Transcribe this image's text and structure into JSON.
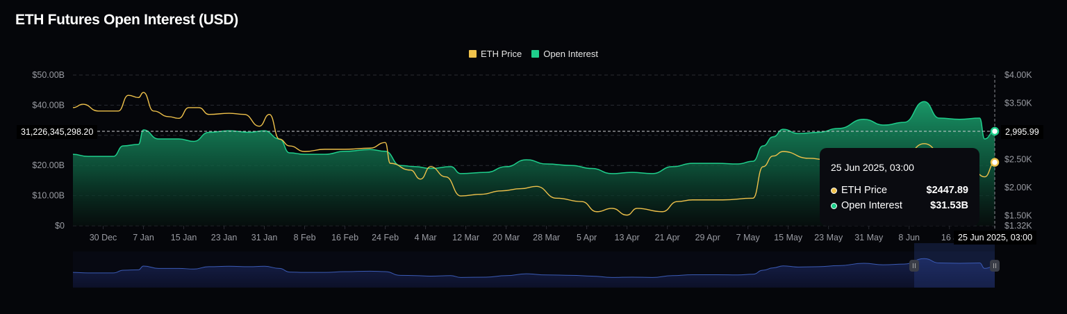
{
  "title": "ETH Futures Open Interest (USD)",
  "colors": {
    "eth_price": "#f0c24b",
    "open_interest": "#1fcf8c",
    "navigator_line": "#3b5bb5",
    "background": "#05060a"
  },
  "legend": [
    {
      "label": "ETH Price",
      "color": "#f0c24b"
    },
    {
      "label": "Open Interest",
      "color": "#1fcf8c"
    }
  ],
  "crosshair": {
    "left_value": "31,226,345,298.20",
    "right_value": "2,995.99",
    "bottom_value": "25 Jun 2025, 03:00"
  },
  "tooltip": {
    "date": "25 Jun 2025, 03:00",
    "rows": [
      {
        "label": "ETH Price",
        "value": "$2447.89",
        "color": "#f0c24b"
      },
      {
        "label": "Open Interest",
        "value": "$31.53B",
        "color": "#1fcf8c"
      }
    ]
  },
  "chart_data": {
    "type": "line",
    "title": "ETH Futures Open Interest (USD)",
    "x_range": [
      "2024-12-24",
      "2025-06-25"
    ],
    "x_ticks": [
      {
        "date": "2024-12-30",
        "label": "30 Dec"
      },
      {
        "date": "2025-01-07",
        "label": "7 Jan"
      },
      {
        "date": "2025-01-15",
        "label": "15 Jan"
      },
      {
        "date": "2025-01-23",
        "label": "23 Jan"
      },
      {
        "date": "2025-01-31",
        "label": "31 Jan"
      },
      {
        "date": "2025-02-08",
        "label": "8 Feb"
      },
      {
        "date": "2025-02-16",
        "label": "16 Feb"
      },
      {
        "date": "2025-02-24",
        "label": "24 Feb"
      },
      {
        "date": "2025-03-04",
        "label": "4 Mar"
      },
      {
        "date": "2025-03-12",
        "label": "12 Mar"
      },
      {
        "date": "2025-03-20",
        "label": "20 Mar"
      },
      {
        "date": "2025-03-28",
        "label": "28 Mar"
      },
      {
        "date": "2025-04-05",
        "label": "5 Apr"
      },
      {
        "date": "2025-04-13",
        "label": "13 Apr"
      },
      {
        "date": "2025-04-21",
        "label": "21 Apr"
      },
      {
        "date": "2025-04-29",
        "label": "29 Apr"
      },
      {
        "date": "2025-05-07",
        "label": "7 May"
      },
      {
        "date": "2025-05-15",
        "label": "15 May"
      },
      {
        "date": "2025-05-23",
        "label": "23 May"
      },
      {
        "date": "2025-05-31",
        "label": "31 May"
      },
      {
        "date": "2025-06-08",
        "label": "8 Jun"
      },
      {
        "date": "2025-06-16",
        "label": "16 J"
      }
    ],
    "y_left": {
      "min": 0,
      "max": 50,
      "unit": "B USD",
      "ticks": [
        {
          "v": 0,
          "label": "$0"
        },
        {
          "v": 10,
          "label": "$10.00B"
        },
        {
          "v": 20,
          "label": "$20.00B"
        },
        {
          "v": 40,
          "label": "$40.00B"
        },
        {
          "v": 50,
          "label": "$50.00B"
        }
      ]
    },
    "y_right": {
      "min": 1320,
      "max": 4000,
      "unit": "USD",
      "ticks": [
        {
          "v": 1320,
          "label": "$1.32K"
        },
        {
          "v": 1500,
          "label": "$1.50K"
        },
        {
          "v": 2000,
          "label": "$2.00K"
        },
        {
          "v": 2500,
          "label": "$2.50K"
        },
        {
          "v": 3500,
          "label": "$3.50K"
        },
        {
          "v": 4000,
          "label": "$4.00K"
        }
      ]
    },
    "grid": true,
    "legend_position": "top-center",
    "series": [
      {
        "name": "Open Interest",
        "axis": "left",
        "style": "area",
        "color": "#1fcf8c",
        "points": [
          [
            "2024-12-24",
            23.7
          ],
          [
            "2024-12-27",
            23
          ],
          [
            "2025-01-01",
            23
          ],
          [
            "2025-01-03",
            26.5
          ],
          [
            "2025-01-06",
            27
          ],
          [
            "2025-01-07",
            31.8
          ],
          [
            "2025-01-10",
            28.8
          ],
          [
            "2025-01-14",
            28.8
          ],
          [
            "2025-01-17",
            28
          ],
          [
            "2025-01-20",
            31
          ],
          [
            "2025-01-24",
            31.5
          ],
          [
            "2025-01-28",
            31
          ],
          [
            "2025-01-31",
            31.5
          ],
          [
            "2025-02-03",
            28.8
          ],
          [
            "2025-02-05",
            24.2
          ],
          [
            "2025-02-08",
            23.7
          ],
          [
            "2025-02-12",
            23.7
          ],
          [
            "2025-02-16",
            24.7
          ],
          [
            "2025-02-21",
            25.3
          ],
          [
            "2025-02-24",
            24.7
          ],
          [
            "2025-02-27",
            20
          ],
          [
            "2025-03-02",
            19.6
          ],
          [
            "2025-03-05",
            19
          ],
          [
            "2025-03-09",
            19.6
          ],
          [
            "2025-03-11",
            17.3
          ],
          [
            "2025-03-16",
            17.7
          ],
          [
            "2025-03-20",
            19.6
          ],
          [
            "2025-03-24",
            21.9
          ],
          [
            "2025-03-28",
            20.5
          ],
          [
            "2025-04-02",
            20
          ],
          [
            "2025-04-06",
            19
          ],
          [
            "2025-04-10",
            17.3
          ],
          [
            "2025-04-14",
            17.7
          ],
          [
            "2025-04-18",
            17.3
          ],
          [
            "2025-04-22",
            19.6
          ],
          [
            "2025-04-26",
            20.7
          ],
          [
            "2025-05-01",
            20.7
          ],
          [
            "2025-05-05",
            20.5
          ],
          [
            "2025-05-08",
            21.4
          ],
          [
            "2025-05-10",
            26.5
          ],
          [
            "2025-05-12",
            29.5
          ],
          [
            "2025-05-14",
            32
          ],
          [
            "2025-05-17",
            30.6
          ],
          [
            "2025-05-21",
            31
          ],
          [
            "2025-05-25",
            32.3
          ],
          [
            "2025-05-30",
            35.3
          ],
          [
            "2025-06-03",
            33.4
          ],
          [
            "2025-06-07",
            34.3
          ],
          [
            "2025-06-11",
            41.2
          ],
          [
            "2025-06-14",
            35.7
          ],
          [
            "2025-06-18",
            35.3
          ],
          [
            "2025-06-22",
            35.7
          ],
          [
            "2025-06-23",
            28.8
          ],
          [
            "2025-06-25",
            31.53
          ]
        ]
      },
      {
        "name": "ETH Price",
        "axis": "right",
        "style": "line",
        "color": "#f0c24b",
        "points": [
          [
            "2024-12-24",
            3420
          ],
          [
            "2024-12-26",
            3480
          ],
          [
            "2024-12-29",
            3360
          ],
          [
            "2025-01-02",
            3360
          ],
          [
            "2025-01-04",
            3640
          ],
          [
            "2025-01-06",
            3600
          ],
          [
            "2025-01-07",
            3690
          ],
          [
            "2025-01-09",
            3360
          ],
          [
            "2025-01-12",
            3260
          ],
          [
            "2025-01-14",
            3230
          ],
          [
            "2025-01-16",
            3420
          ],
          [
            "2025-01-18",
            3420
          ],
          [
            "2025-01-20",
            3300
          ],
          [
            "2025-01-24",
            3320
          ],
          [
            "2025-01-27",
            3300
          ],
          [
            "2025-01-30",
            3090
          ],
          [
            "2025-02-01",
            3300
          ],
          [
            "2025-02-03",
            2860
          ],
          [
            "2025-02-05",
            2740
          ],
          [
            "2025-02-08",
            2640
          ],
          [
            "2025-02-12",
            2680
          ],
          [
            "2025-02-16",
            2680
          ],
          [
            "2025-02-21",
            2700
          ],
          [
            "2025-02-24",
            2800
          ],
          [
            "2025-02-25",
            2430
          ],
          [
            "2025-03-01",
            2310
          ],
          [
            "2025-03-03",
            2150
          ],
          [
            "2025-03-05",
            2370
          ],
          [
            "2025-03-08",
            2190
          ],
          [
            "2025-03-11",
            1850
          ],
          [
            "2025-03-15",
            1880
          ],
          [
            "2025-03-19",
            1940
          ],
          [
            "2025-03-23",
            1980
          ],
          [
            "2025-03-26",
            2020
          ],
          [
            "2025-03-30",
            1810
          ],
          [
            "2025-04-04",
            1750
          ],
          [
            "2025-04-07",
            1570
          ],
          [
            "2025-04-10",
            1630
          ],
          [
            "2025-04-13",
            1510
          ],
          [
            "2025-04-15",
            1630
          ],
          [
            "2025-04-20",
            1570
          ],
          [
            "2025-04-23",
            1750
          ],
          [
            "2025-04-26",
            1780
          ],
          [
            "2025-05-02",
            1780
          ],
          [
            "2025-05-08",
            1810
          ],
          [
            "2025-05-10",
            2370
          ],
          [
            "2025-05-12",
            2560
          ],
          [
            "2025-05-14",
            2640
          ],
          [
            "2025-05-19",
            2520
          ],
          [
            "2025-05-23",
            2490
          ],
          [
            "2025-05-28",
            2520
          ],
          [
            "2025-06-07",
            2560
          ],
          [
            "2025-06-11",
            2780
          ],
          [
            "2025-06-15",
            2560
          ],
          [
            "2025-06-21",
            2270
          ],
          [
            "2025-06-23",
            2190
          ],
          [
            "2025-06-25",
            2447.89
          ]
        ]
      }
    ],
    "navigator": {
      "selected_range": [
        "2025-06-09",
        "2025-06-25"
      ]
    }
  }
}
